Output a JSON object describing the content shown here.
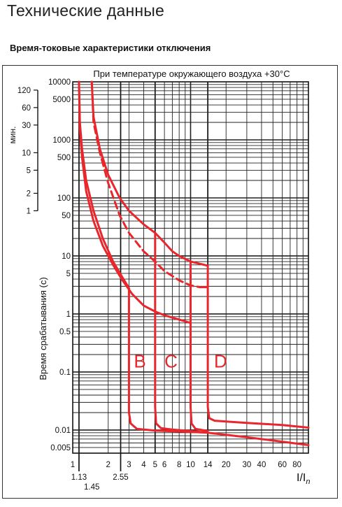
{
  "header": {
    "title": "Технические данные",
    "subtitle": "Время-токовые характеристики отключения"
  },
  "chart_data": {
    "type": "line",
    "title": "При температуре окружающего воздуха +30°С",
    "xlabel": "I/In",
    "xlabel_main": "I/I",
    "xlabel_sub": "n",
    "ylabel": "Время срабатывания (с)",
    "minutes_label": "мин.",
    "x_scale": "log",
    "y_scale": "log",
    "xlim": [
      1,
      100
    ],
    "ylim": [
      0.004,
      10000
    ],
    "grid": true,
    "x_ticks": [
      {
        "v": 1,
        "label": "1"
      },
      {
        "v": 2,
        "label": "2"
      },
      {
        "v": 3,
        "label": "3"
      },
      {
        "v": 4,
        "label": "4"
      },
      {
        "v": 5,
        "label": "5"
      },
      {
        "v": 6,
        "label": "6"
      },
      {
        "v": 8,
        "label": "8"
      },
      {
        "v": 10,
        "label": "10"
      },
      {
        "v": 14,
        "label": "14"
      },
      {
        "v": 20,
        "label": "20"
      },
      {
        "v": 30,
        "label": "30"
      },
      {
        "v": 40,
        "label": "40"
      },
      {
        "v": 60,
        "label": "60"
      },
      {
        "v": 80,
        "label": "80"
      }
    ],
    "x_ticks_low": [
      {
        "v": 1.13,
        "label": "1.13",
        "row": 1
      },
      {
        "v": 1.45,
        "label": "1.45",
        "row": 2
      },
      {
        "v": 2.55,
        "label": "2.55",
        "row": 1
      }
    ],
    "y_ticks": [
      {
        "v": 10000,
        "label": "10000"
      },
      {
        "v": 5000,
        "label": "5000"
      },
      {
        "v": 1000,
        "label": "1000"
      },
      {
        "v": 500,
        "label": "500"
      },
      {
        "v": 100,
        "label": "100"
      },
      {
        "v": 50,
        "label": "50"
      },
      {
        "v": 10,
        "label": "10"
      },
      {
        "v": 5,
        "label": "5"
      },
      {
        "v": 1,
        "label": "1"
      },
      {
        "v": 0.5,
        "label": "0.5"
      },
      {
        "v": 0.1,
        "label": "0.1"
      },
      {
        "v": 0.01,
        "label": "0.01"
      },
      {
        "v": 0.005,
        "label": "0.005"
      }
    ],
    "minute_ticks": [
      {
        "v": 120,
        "label": "120"
      },
      {
        "v": 60,
        "label": "60"
      },
      {
        "v": 30,
        "label": "30"
      },
      {
        "v": 10,
        "label": "10"
      },
      {
        "v": 5,
        "label": "5"
      },
      {
        "v": 2,
        "label": "2"
      },
      {
        "v": 1,
        "label": "1"
      }
    ],
    "series_color": "#e8262c",
    "series": [
      {
        "name": "B",
        "label_x": 3.3,
        "label_y": 0.12,
        "points": [
          [
            1.13,
            10000
          ],
          [
            1.15,
            2000
          ],
          [
            1.2,
            700
          ],
          [
            1.3,
            200
          ],
          [
            1.5,
            60
          ],
          [
            1.8,
            20
          ],
          [
            2.2,
            8
          ],
          [
            2.6,
            4.5
          ],
          [
            3,
            2.8
          ],
          [
            3,
            1.5
          ],
          [
            3,
            0.1
          ],
          [
            3,
            0.02
          ],
          [
            3.1,
            0.013
          ],
          [
            3.5,
            0.0105
          ],
          [
            5,
            0.0098
          ],
          [
            10,
            0.0093
          ],
          [
            14,
            0.009
          ],
          [
            30,
            0.0075
          ],
          [
            60,
            0.0063
          ],
          [
            100,
            0.0055
          ]
        ]
      },
      {
        "name": "C",
        "label_x": 6.0,
        "label_y": 0.12,
        "points": [
          [
            1.45,
            10000
          ],
          [
            1.5,
            2500
          ],
          [
            1.7,
            700
          ],
          [
            2,
            250
          ],
          [
            2.5,
            100
          ],
          [
            3,
            60
          ],
          [
            4,
            35
          ],
          [
            5,
            25
          ],
          [
            5,
            5
          ],
          [
            5,
            1
          ],
          [
            5,
            0.1
          ],
          [
            5,
            0.025
          ],
          [
            5.1,
            0.013
          ],
          [
            5.6,
            0.0108
          ],
          [
            7,
            0.0102
          ],
          [
            10,
            0.0096
          ],
          [
            14,
            0.009
          ]
        ]
      },
      {
        "name": "C-lower",
        "points": [
          [
            1.13,
            10000
          ],
          [
            1.15,
            1500
          ],
          [
            1.2,
            500
          ],
          [
            1.3,
            130
          ],
          [
            1.5,
            40
          ],
          [
            1.8,
            15
          ],
          [
            2.2,
            7
          ],
          [
            2.6,
            4
          ],
          [
            3.2,
            2.2
          ],
          [
            4,
            1.4
          ],
          [
            5,
            1.1
          ],
          [
            6,
            0.95
          ],
          [
            8,
            0.8
          ],
          [
            10,
            0.7
          ]
        ]
      },
      {
        "name": "D",
        "label_x": 15.8,
        "label_y": 0.12,
        "points": [
          [
            5,
            25
          ],
          [
            6,
            17
          ],
          [
            7,
            12
          ],
          [
            8,
            10
          ],
          [
            10,
            8
          ],
          [
            14,
            6.8
          ],
          [
            14,
            1
          ],
          [
            14,
            0.1
          ],
          [
            14,
            0.025
          ],
          [
            14.4,
            0.016
          ],
          [
            16,
            0.0145
          ],
          [
            20,
            0.014
          ],
          [
            30,
            0.0133
          ],
          [
            60,
            0.0122
          ],
          [
            100,
            0.011
          ]
        ]
      },
      {
        "name": "D-inner",
        "points": [
          [
            10,
            8
          ],
          [
            10,
            1
          ],
          [
            10,
            0.1
          ],
          [
            10,
            0.025
          ],
          [
            10.2,
            0.013
          ],
          [
            11,
            0.0105
          ],
          [
            14,
            0.0096
          ]
        ]
      },
      {
        "name": "D-lower",
        "points": [
          [
            12,
            2.9
          ],
          [
            14,
            2.9
          ]
        ]
      },
      {
        "name": "dashed",
        "dashed": true,
        "points": [
          [
            1.45,
            10000
          ],
          [
            1.5,
            2000
          ],
          [
            1.7,
            600
          ],
          [
            2,
            180
          ],
          [
            2.5,
            50
          ],
          [
            3,
            25
          ],
          [
            4,
            12
          ],
          [
            5,
            8
          ],
          [
            6,
            5.5
          ],
          [
            8,
            3.8
          ],
          [
            10,
            3.1
          ],
          [
            12,
            2.9
          ]
        ]
      }
    ]
  }
}
